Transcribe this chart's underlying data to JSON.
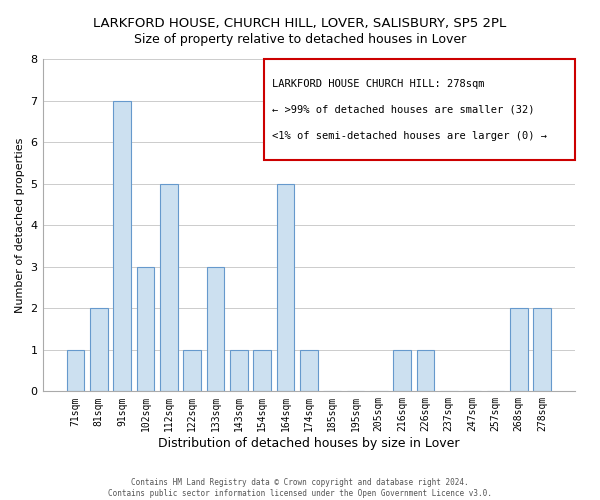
{
  "title": "LARKFORD HOUSE, CHURCH HILL, LOVER, SALISBURY, SP5 2PL",
  "subtitle": "Size of property relative to detached houses in Lover",
  "xlabel": "Distribution of detached houses by size in Lover",
  "ylabel": "Number of detached properties",
  "categories": [
    "71sqm",
    "81sqm",
    "91sqm",
    "102sqm",
    "112sqm",
    "122sqm",
    "133sqm",
    "143sqm",
    "154sqm",
    "164sqm",
    "174sqm",
    "185sqm",
    "195sqm",
    "205sqm",
    "216sqm",
    "226sqm",
    "237sqm",
    "247sqm",
    "257sqm",
    "268sqm",
    "278sqm"
  ],
  "values": [
    1,
    2,
    7,
    3,
    5,
    1,
    3,
    1,
    1,
    5,
    1,
    0,
    0,
    0,
    1,
    1,
    0,
    0,
    0,
    2,
    2
  ],
  "bar_color": "#cce0f0",
  "bar_edge_color": "#6699cc",
  "ylim": [
    0,
    8
  ],
  "yticks": [
    0,
    1,
    2,
    3,
    4,
    5,
    6,
    7,
    8
  ],
  "annotation_box_edge_color": "#cc0000",
  "annotation_lines": [
    "LARKFORD HOUSE CHURCH HILL: 278sqm",
    "← >99% of detached houses are smaller (32)",
    "<1% of semi-detached houses are larger (0) →"
  ],
  "footer_line1": "Contains HM Land Registry data © Crown copyright and database right 2024.",
  "footer_line2": "Contains public sector information licensed under the Open Government Licence v3.0.",
  "background_color": "#ffffff",
  "grid_color": "#cccccc",
  "title_fontsize": 9.5,
  "subtitle_fontsize": 9,
  "xlabel_fontsize": 9,
  "ylabel_fontsize": 8,
  "tick_fontsize": 7,
  "ann_fontsize": 7.5,
  "footer_fontsize": 5.5
}
